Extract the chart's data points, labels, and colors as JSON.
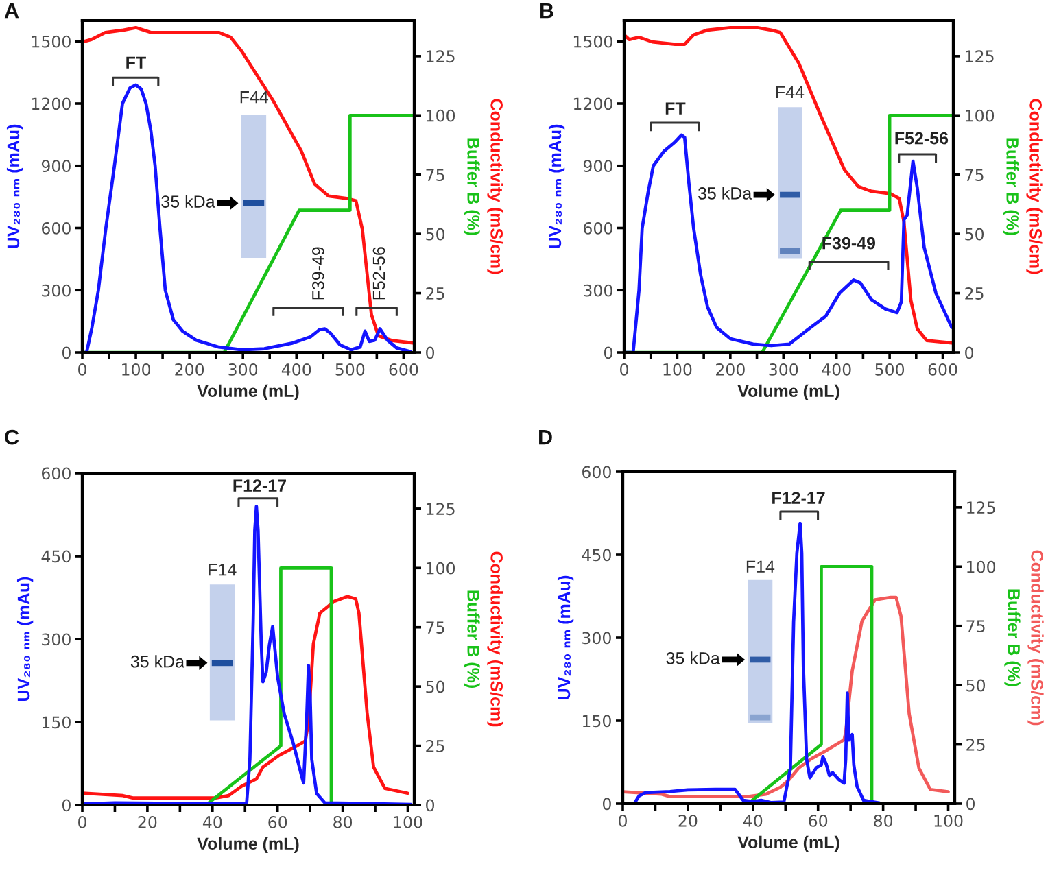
{
  "chart_data": [
    {
      "type": "line",
      "title": "A",
      "xlabel": "Volume (mL)",
      "ylabel": "UV₂₈₀ ₙₘ (mAu)",
      "y2label": "Conductivity (mS/cm)\nBuffer B (%)",
      "xlim": [
        0,
        620
      ],
      "xticks": [
        0,
        {
          "value": 50,
          "label": null
        },
        100,
        {
          "value": 150,
          "label": null
        },
        200,
        {
          "value": 250,
          "label": null
        },
        300,
        {
          "value": 350,
          "label": null
        },
        400,
        {
          "value": 450,
          "label": null
        },
        500,
        {
          "value": 550,
          "label": null
        },
        600
      ],
      "ylim": [
        0,
        1600
      ],
      "yticks": [
        0,
        300,
        600,
        900,
        1200,
        1500
      ],
      "y2lim": [
        0,
        140
      ],
      "y2ticks": [
        0,
        25,
        50,
        75,
        100,
        125
      ],
      "series": [
        {
          "color": "#1414ff",
          "x": [
            0,
            8,
            18,
            30,
            44,
            60,
            75,
            89,
            100,
            110,
            119,
            128,
            136,
            145,
            155,
            170,
            187,
            213,
            255,
            298,
            340,
            391,
            426,
            443,
            453,
            464,
            481,
            502,
            519,
            528,
            536,
            546,
            556,
            570,
            587,
            613
          ],
          "values": [
            0,
            0,
            120,
            300,
            600,
            900,
            1200,
            1275,
            1290,
            1270,
            1200,
            1070,
            900,
            600,
            300,
            158,
            103,
            59,
            26,
            13,
            18,
            44,
            75,
            110,
            114,
            92,
            37,
            13,
            26,
            103,
            53,
            59,
            114,
            59,
            22,
            4
          ]
        },
        {
          "axis": "y2",
          "color": "#ff1414",
          "x": [
            0,
            17,
            43,
            77,
            100,
            128,
            187,
            255,
            277,
            298,
            357,
            409,
            434,
            460,
            494,
            511,
            523,
            532,
            540,
            553,
            579,
            617
          ],
          "values": [
            131,
            132,
            135,
            136,
            137,
            135,
            135,
            135,
            133,
            127,
            106,
            85,
            71,
            66,
            65,
            64,
            52,
            33,
            16,
            7,
            5,
            4
          ]
        },
        {
          "axis": "y2",
          "color": "#19c219",
          "x": [
            0,
            265,
            405,
            500,
            500,
            620
          ],
          "values": [
            0,
            0,
            60,
            60,
            100,
            100
          ]
        }
      ],
      "annotations": [
        "F44",
        "35 kDa",
        "FT",
        "F39-49",
        "F52-56"
      ]
    },
    {
      "type": "line",
      "title": "B",
      "xlabel": "Volume (mL)",
      "ylabel": "UV₂₈₀ ₙₘ (mAu)",
      "y2label": "Conductivity (mS/cm)\nBuffer B (%)",
      "xlim": [
        0,
        620
      ],
      "xticks": [
        0,
        {
          "value": 50,
          "label": null
        },
        100,
        {
          "value": 150,
          "label": null
        },
        200,
        {
          "value": 250,
          "label": null
        },
        300,
        {
          "value": 350,
          "label": null
        },
        400,
        {
          "value": 450,
          "label": null
        },
        500,
        {
          "value": 550,
          "label": null
        },
        600
      ],
      "ylim": [
        0,
        1600
      ],
      "yticks": [
        0,
        300,
        600,
        900,
        1200,
        1500
      ],
      "y2lim": [
        0,
        140
      ],
      "y2ticks": [
        0,
        25,
        50,
        75,
        100,
        125
      ],
      "series": [
        {
          "color": "#1414ff",
          "x": [
            0,
            17,
            28,
            34,
            45,
            55,
            75,
            96,
            108,
            114,
            122,
            131,
            144,
            157,
            174,
            200,
            243,
            277,
            311,
            346,
            380,
            406,
            432,
            445,
            466,
            492,
            514,
            522,
            527,
            533,
            544,
            552,
            565,
            587,
            617
          ],
          "values": [
            0,
            0,
            300,
            600,
            770,
            900,
            970,
            1015,
            1048,
            1037,
            816,
            596,
            375,
            220,
            121,
            66,
            40,
            33,
            40,
            110,
            176,
            287,
            349,
            335,
            254,
            210,
            192,
            243,
            640,
            662,
            922,
            794,
            507,
            287,
            121
          ]
        },
        {
          "axis": "y2",
          "color": "#ff1414",
          "x": [
            0,
            10,
            28,
            53,
            96,
            114,
            131,
            157,
            200,
            251,
            277,
            294,
            329,
            372,
            415,
            441,
            466,
            501,
            518,
            527,
            540,
            552,
            570,
            617
          ],
          "values": [
            134,
            132,
            133,
            131,
            130,
            130,
            134,
            136,
            137,
            137,
            136,
            135,
            122,
            99,
            77,
            70,
            68,
            67,
            65,
            55,
            22,
            10,
            5,
            4
          ]
        },
        {
          "axis": "y2",
          "color": "#19c219",
          "x": [
            0,
            260,
            408,
            500,
            500,
            620
          ],
          "values": [
            0,
            0,
            60,
            60,
            100,
            100
          ]
        }
      ],
      "annotations": [
        "F44",
        "35 kDa",
        "FT",
        "F39-49",
        "F52-56"
      ]
    },
    {
      "type": "line",
      "title": "C",
      "xlabel": "Volume (mL)",
      "ylabel": "UV₂₈₀ ₙₘ (mAu)",
      "y2label": "Conductivity (mS/cm)\nBuffer B (%)",
      "xlim": [
        0,
        102
      ],
      "xticks": [
        0,
        {
          "value": 10,
          "label": null
        },
        20,
        {
          "value": 30,
          "label": null
        },
        40,
        {
          "value": 50,
          "label": null
        },
        60,
        {
          "value": 70,
          "label": null
        },
        80,
        {
          "value": 90,
          "label": null
        },
        100
      ],
      "ylim": [
        0,
        600
      ],
      "yticks": [
        0,
        150,
        300,
        450,
        600
      ],
      "y2lim": [
        0,
        140
      ],
      "y2ticks": [
        0,
        25,
        50,
        75,
        100,
        125
      ],
      "series": [
        {
          "color": "#1414ff",
          "x": [
            0,
            10,
            30,
            50,
            50.5,
            51.5,
            52.5,
            53,
            53.5,
            54,
            55,
            55.5,
            56.5,
            57.5,
            58.5,
            60,
            62,
            65,
            67.5,
            68,
            69,
            69.5,
            70,
            70.5,
            72,
            74.5,
            101
          ],
          "values": [
            2,
            4,
            3,
            2,
            4,
            83,
            331,
            497,
            540,
            497,
            290,
            223,
            240,
            290,
            323,
            232,
            166,
            108,
            50,
            40,
            166,
            252,
            199,
            83,
            21,
            4,
            1
          ]
        },
        {
          "axis": "y2",
          "color": "#ff1414",
          "x": [
            0,
            12.5,
            15.5,
            41,
            45,
            49,
            53.5,
            55.5,
            60.5,
            66,
            68.5,
            69.5,
            71,
            73,
            77.5,
            81.5,
            84,
            85,
            87.5,
            89.5,
            93,
            100
          ],
          "values": [
            5,
            4,
            3,
            3,
            4,
            8,
            11,
            16,
            21,
            25,
            27,
            35,
            68,
            81,
            86,
            88,
            87,
            81,
            39,
            16,
            7,
            5
          ]
        },
        {
          "axis": "y2",
          "color": "#19c219",
          "x": [
            0,
            38,
            61,
            61,
            76.5,
            76.5,
            100
          ],
          "values": [
            0,
            0,
            25,
            100,
            100,
            0,
            0
          ]
        }
      ],
      "annotations": [
        "F14",
        "35 kDa",
        "F12-17"
      ]
    },
    {
      "type": "line",
      "title": "D",
      "xlabel": "Volume (mL)",
      "ylabel": "UV₂₈₀ ₙₘ (mAu)",
      "y2label": "Conductivity (mS/cm)\nBuffer B (%)",
      "xlim": [
        0,
        102
      ],
      "xticks": [
        0,
        {
          "value": 10,
          "label": null
        },
        20,
        {
          "value": 30,
          "label": null
        },
        40,
        {
          "value": 50,
          "label": null
        },
        60,
        {
          "value": 70,
          "label": null
        },
        80,
        {
          "value": 90,
          "label": null
        },
        100
      ],
      "ylim": [
        0,
        600
      ],
      "yticks": [
        0,
        150,
        300,
        450,
        600
      ],
      "y2lim": [
        0,
        140
      ],
      "y2ticks": [
        0,
        25,
        50,
        75,
        100,
        125
      ],
      "series": [
        {
          "color": "#1414ff",
          "x": [
            0,
            3.5,
            5,
            7,
            14.5,
            20,
            28.5,
            34.5,
            35.5,
            37,
            40,
            42.5,
            45.5,
            49.5,
            51.5,
            52.5,
            53.5,
            54.5,
            55,
            55.5,
            56.5,
            57.5,
            58.5,
            59.5,
            61,
            61.5,
            62.5,
            63.5,
            64.5,
            66.5,
            68,
            68.5,
            69,
            69.5,
            70.5,
            71,
            72,
            74,
            79,
            100
          ],
          "values": [
            0,
            0,
            14,
            20,
            22,
            25,
            26,
            26,
            18,
            6,
            4,
            6,
            2,
            3,
            64,
            329,
            453,
            507,
            453,
            246,
            80,
            47,
            56,
            65,
            70,
            85,
            72,
            51,
            56,
            43,
            37,
            80,
            200,
            115,
            125,
            70,
            31,
            6,
            1,
            0
          ]
        },
        {
          "axis": "y2",
          "color": "#f25a5a",
          "x": [
            0,
            12,
            14.5,
            38.5,
            44,
            48.5,
            51,
            54,
            58,
            62,
            68,
            68.5,
            70.5,
            73.5,
            77.5,
            82,
            84,
            85.5,
            88,
            91,
            94.5,
            100
          ],
          "values": [
            5,
            4,
            3,
            3,
            4,
            7,
            10,
            15,
            19,
            22,
            27,
            30,
            56,
            77,
            86,
            87,
            87,
            79,
            38,
            15,
            6,
            5
          ]
        },
        {
          "axis": "y2",
          "color": "#19c219",
          "x": [
            0,
            38.5,
            61,
            61,
            76.5,
            76.5,
            100
          ],
          "values": [
            0,
            0,
            25,
            100,
            100,
            0,
            0
          ]
        }
      ],
      "annotations": [
        "F14",
        "35 kDa",
        "F12-17"
      ]
    }
  ]
}
